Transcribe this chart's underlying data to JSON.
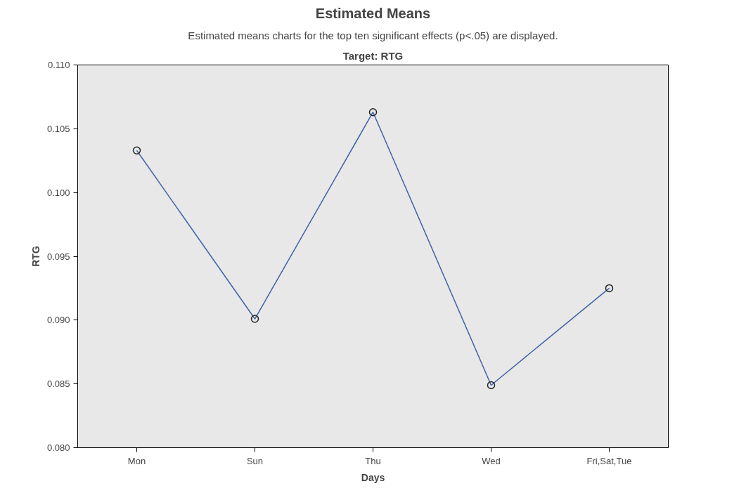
{
  "chart_data": {
    "type": "line",
    "title": "Estimated Means",
    "subtitle": "Target: RTG",
    "annotations": [
      "Estimated means charts for the top ten significant effects (p<.05) are displayed."
    ],
    "xlabel": "Days",
    "ylabel": "RTG",
    "categories": [
      "Mon",
      "Sun",
      "Thu",
      "Wed",
      "Fri,Sat,Tue"
    ],
    "series": [
      {
        "color": "#3f62a8",
        "values": [
          0.1033,
          0.0901,
          0.1063,
          0.0849,
          0.0925
        ]
      }
    ],
    "ylim": [
      0.08,
      0.11
    ],
    "yticks": [
      {
        "value": 0.08,
        "label": "0.080"
      },
      {
        "value": 0.085,
        "label": "0.085"
      },
      {
        "value": 0.09,
        "label": "0.090"
      },
      {
        "value": 0.095,
        "label": "0.095"
      },
      {
        "value": 0.1,
        "label": "0.100"
      },
      {
        "value": 0.105,
        "label": "0.105"
      },
      {
        "value": 0.11,
        "label": "0.110"
      }
    ],
    "grid": false,
    "marker": "circle",
    "line_style": "solid"
  }
}
